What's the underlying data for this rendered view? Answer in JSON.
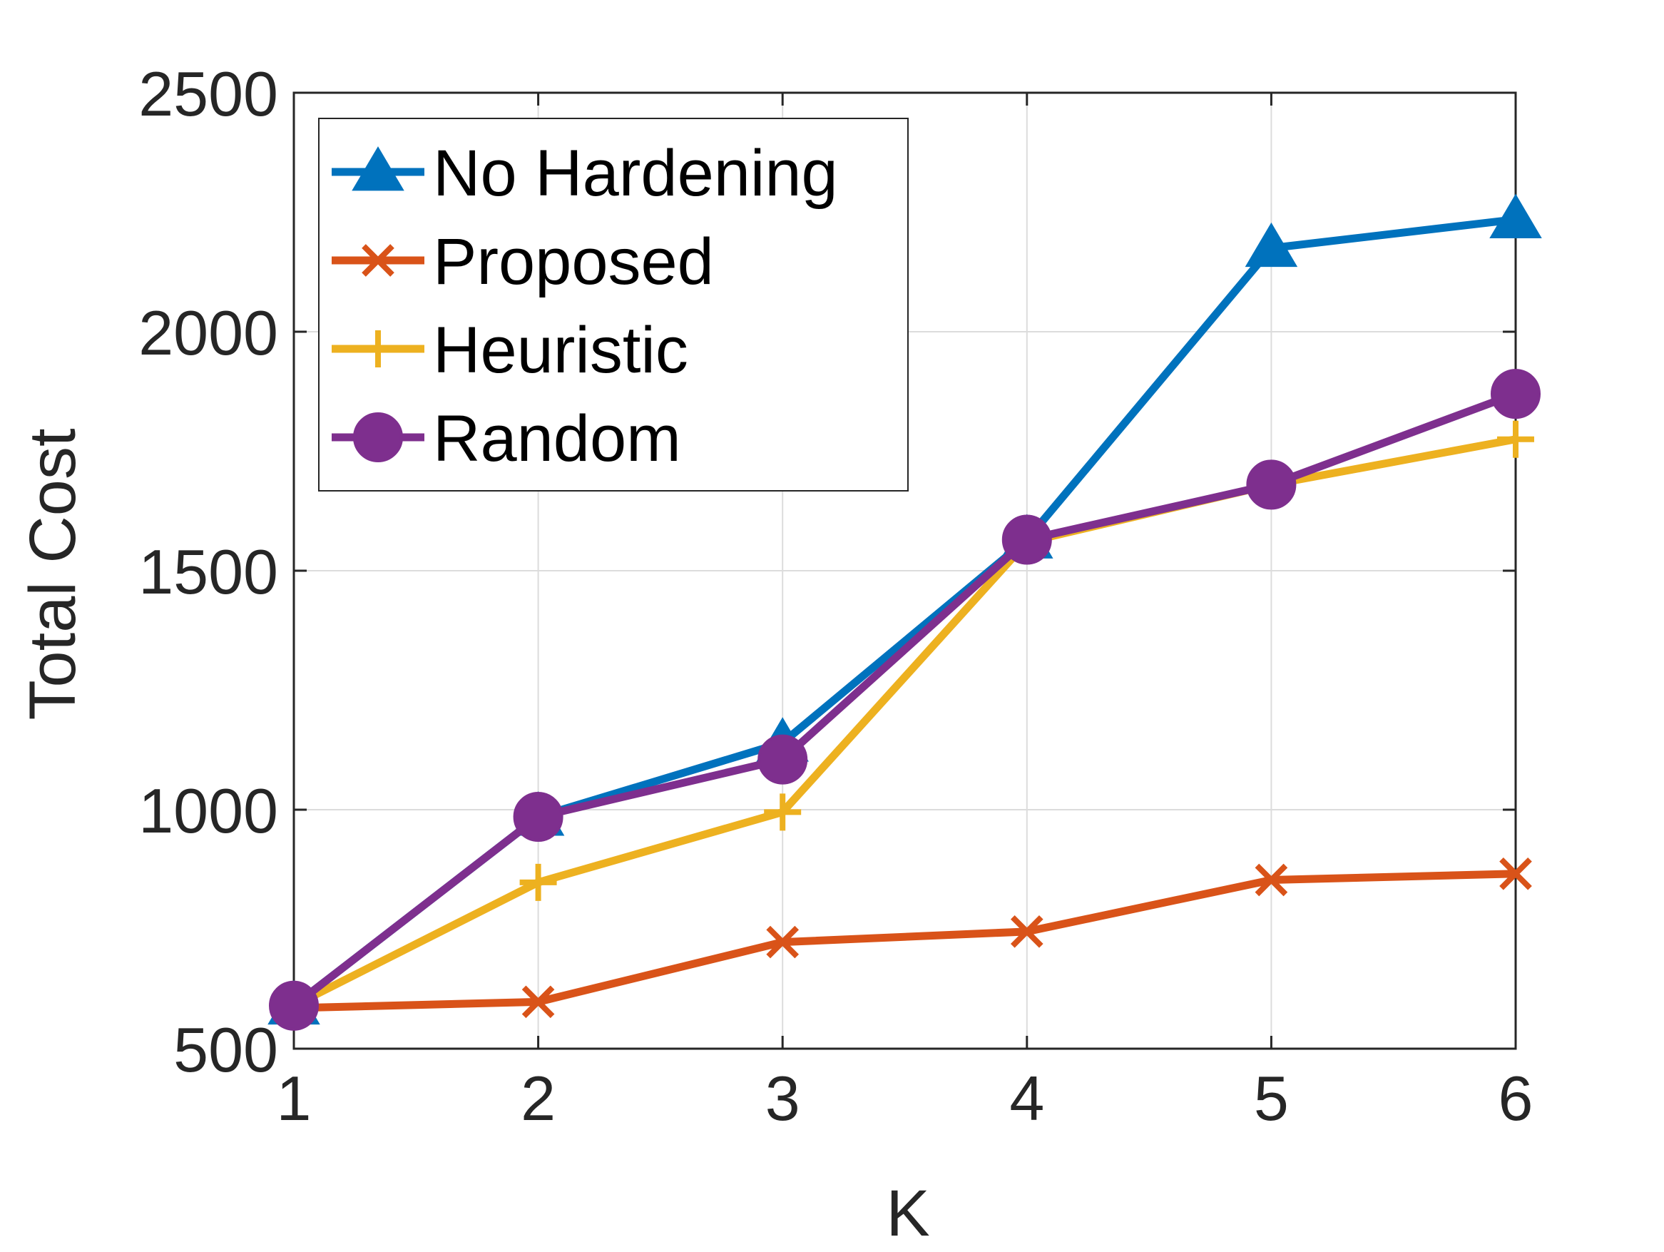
{
  "chart_data": {
    "type": "line",
    "title": "",
    "xlabel": "K",
    "ylabel": "Total Cost",
    "x": [
      1,
      2,
      3,
      4,
      5,
      6
    ],
    "xlim": [
      1,
      6
    ],
    "ylim": [
      500,
      2500
    ],
    "xticks": [
      "1",
      "2",
      "3",
      "4",
      "5",
      "6"
    ],
    "yticks": [
      "500",
      "1000",
      "1500",
      "2000",
      "2500"
    ],
    "grid": true,
    "legend_position": "top-left",
    "series": [
      {
        "name": "No Hardening",
        "marker": "triangle",
        "color": "#0072BD",
        "values": [
          590,
          985,
          1140,
          1565,
          2175,
          2235
        ]
      },
      {
        "name": "Proposed",
        "marker": "x",
        "color": "#D95319",
        "values": [
          585,
          598,
          723,
          745,
          853,
          866
        ]
      },
      {
        "name": "Heuristic",
        "marker": "plus",
        "color": "#EDB120",
        "values": [
          590,
          848,
          995,
          1560,
          1680,
          1775
        ]
      },
      {
        "name": "Random",
        "marker": "circle",
        "color": "#7E2F8E",
        "values": [
          590,
          985,
          1105,
          1565,
          1680,
          1870
        ]
      }
    ]
  }
}
